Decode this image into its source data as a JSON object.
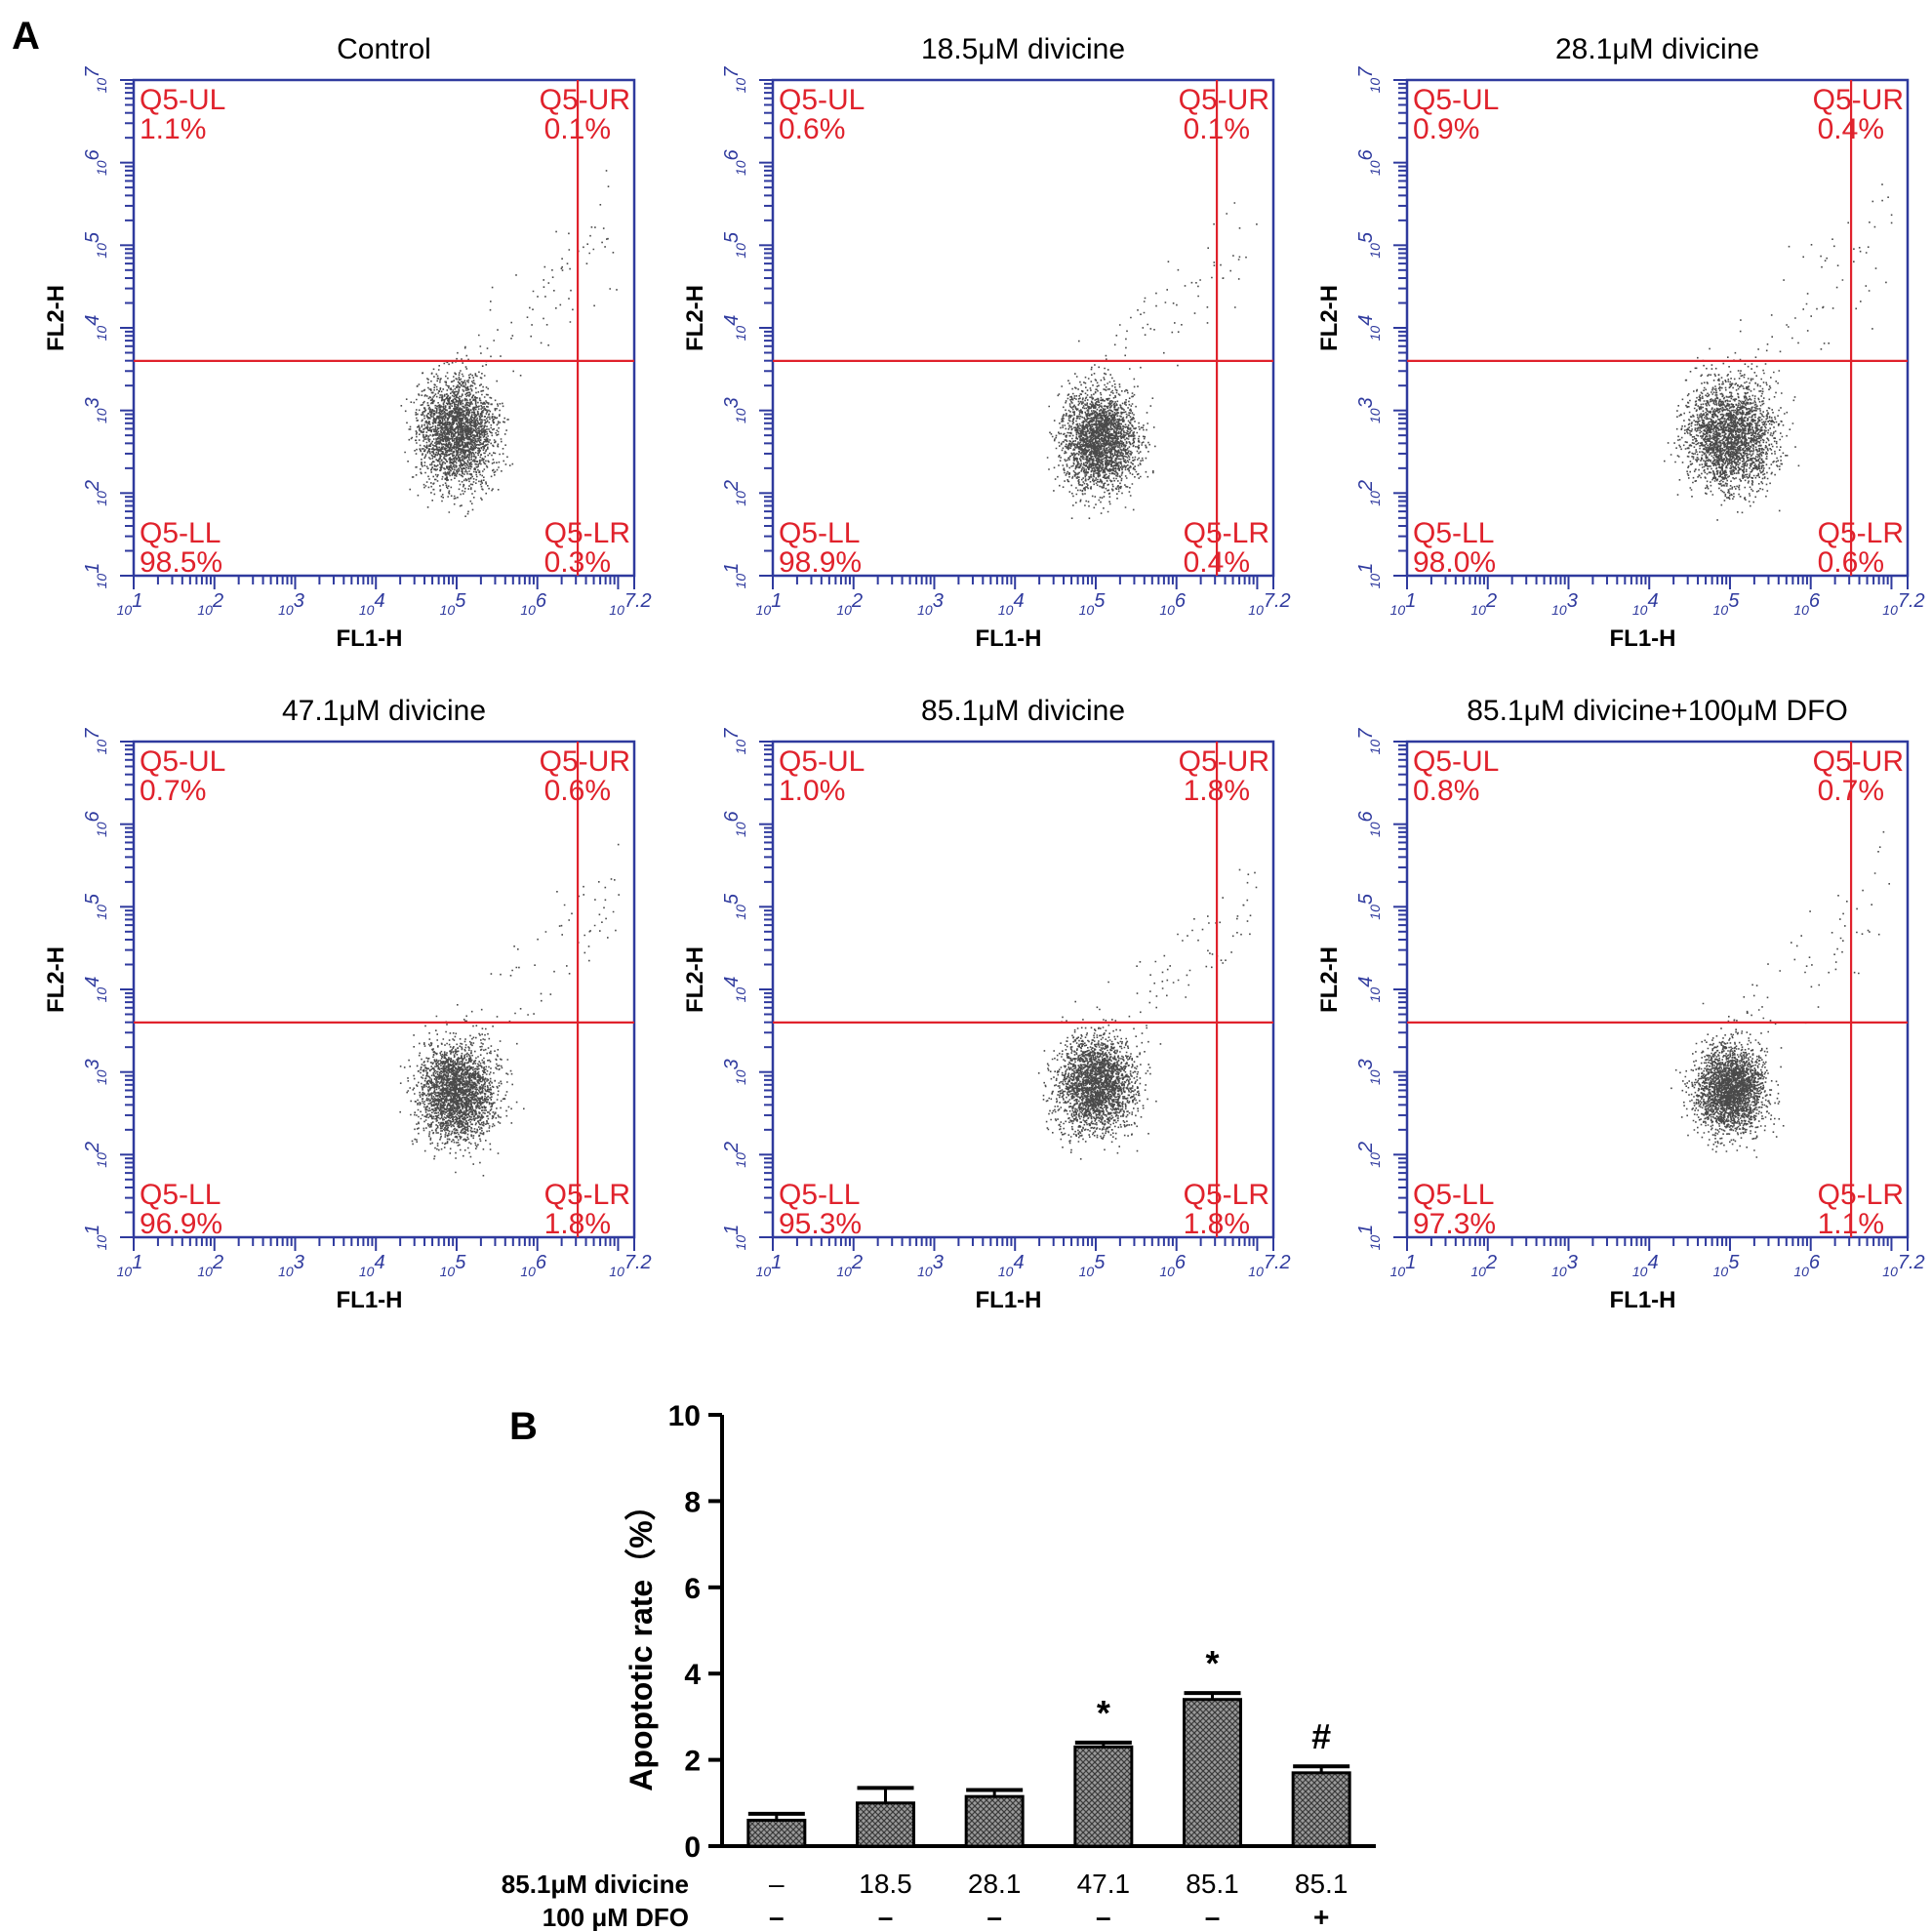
{
  "colors": {
    "axis": "#2f3a9e",
    "gate": "#e0222c",
    "quadrant_text": "#e0222c",
    "dots": "#2a2a2a",
    "bar_fill": "#8a8a8a",
    "text": "#000000"
  },
  "panel_a": {
    "label": "A",
    "x_axis_label": "FL1-H",
    "y_axis_label": "FL2-H",
    "x_tick_labels": [
      "10^1",
      "10^2",
      "10^3",
      "10^4",
      "10^5",
      "10^6",
      "10^7.2"
    ],
    "y_tick_labels": [
      "10^1",
      "10^2",
      "10^3",
      "10^4",
      "10^5",
      "10^6",
      "10^7"
    ],
    "x_range_log10": [
      1,
      7.2
    ],
    "y_range_log10": [
      1,
      7
    ],
    "gate_x_log10": 6.5,
    "gate_y_log10": 3.6,
    "plots": [
      {
        "title": "Control",
        "quadrants": {
          "UL": "Q5-UL",
          "UR": "Q5-UR",
          "LL": "Q5-LL",
          "LR": "Q5-LR"
        },
        "percents": {
          "UL": "1.1%",
          "UR": "0.1%",
          "LL": "98.5%",
          "LR": "0.3%"
        },
        "cluster": {
          "cx_log10": 5.0,
          "cy_log10": 2.75,
          "spread_x": 0.33,
          "spread_y": 0.45
        }
      },
      {
        "title": "18.5μM divicine",
        "quadrants": {
          "UL": "Q5-UL",
          "UR": "Q5-UR",
          "LL": "Q5-LL",
          "LR": "Q5-LR"
        },
        "percents": {
          "UL": "0.6%",
          "UR": "0.1%",
          "LL": "98.9%",
          "LR": "0.4%"
        },
        "cluster": {
          "cx_log10": 5.05,
          "cy_log10": 2.65,
          "spread_x": 0.32,
          "spread_y": 0.42
        }
      },
      {
        "title": "28.1μM divicine",
        "quadrants": {
          "UL": "Q5-UL",
          "UR": "Q5-UR",
          "LL": "Q5-LL",
          "LR": "Q5-LR"
        },
        "percents": {
          "UL": "0.9%",
          "UR": "0.4%",
          "LL": "98.0%",
          "LR": "0.6%"
        },
        "cluster": {
          "cx_log10": 5.0,
          "cy_log10": 2.7,
          "spread_x": 0.38,
          "spread_y": 0.45
        }
      },
      {
        "title": "47.1μM divicine",
        "quadrants": {
          "UL": "Q5-UL",
          "UR": "Q5-UR",
          "LL": "Q5-LL",
          "LR": "Q5-LR"
        },
        "percents": {
          "UL": "0.7%",
          "UR": "0.6%",
          "LL": "96.9%",
          "LR": "1.8%"
        },
        "cluster": {
          "cx_log10": 5.0,
          "cy_log10": 2.75,
          "spread_x": 0.33,
          "spread_y": 0.4
        }
      },
      {
        "title": "85.1μM divicine",
        "quadrants": {
          "UL": "Q5-UL",
          "UR": "Q5-UR",
          "LL": "Q5-LL",
          "LR": "Q5-LR"
        },
        "percents": {
          "UL": "1.0%",
          "UR": "1.8%",
          "LL": "95.3%",
          "LR": "1.8%"
        },
        "cluster": {
          "cx_log10": 5.0,
          "cy_log10": 2.85,
          "spread_x": 0.33,
          "spread_y": 0.4
        }
      },
      {
        "title": "85.1μM divicine+100μM DFO",
        "quadrants": {
          "UL": "Q5-UL",
          "UR": "Q5-UR",
          "LL": "Q5-LL",
          "LR": "Q5-LR"
        },
        "percents": {
          "UL": "0.8%",
          "UR": "0.7%",
          "LL": "97.3%",
          "LR": "1.1%"
        },
        "cluster": {
          "cx_log10": 5.0,
          "cy_log10": 2.8,
          "spread_x": 0.3,
          "spread_y": 0.36
        }
      }
    ]
  },
  "chart_data": {
    "type": "bar",
    "panel_label": "B",
    "title": "",
    "ylabel": "Apoptotic rate（%）",
    "ylim": [
      0,
      10
    ],
    "y_ticks": [
      0,
      2,
      4,
      6,
      8,
      10
    ],
    "categories": [
      "–",
      "18.5",
      "28.1",
      "47.1",
      "85.1",
      "85.1"
    ],
    "values": [
      0.6,
      1.0,
      1.15,
      2.3,
      3.4,
      1.7
    ],
    "errors": [
      0.15,
      0.35,
      0.15,
      0.1,
      0.15,
      0.15
    ],
    "annotations": [
      "",
      "",
      "",
      "*",
      "*",
      "#"
    ],
    "row_labels": [
      "85.1μM divicine",
      "100 μM DFO"
    ],
    "dfo_row": [
      "–",
      "–",
      "–",
      "–",
      "–",
      "+"
    ]
  }
}
